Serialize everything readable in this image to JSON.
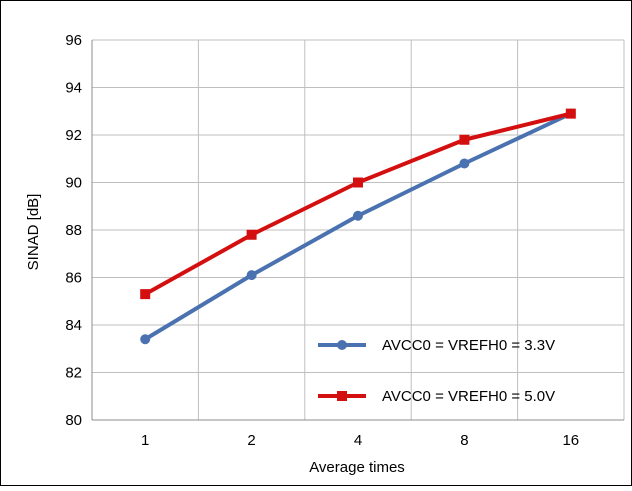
{
  "chart_data": {
    "type": "line",
    "title": "",
    "xlabel": "Average times",
    "ylabel": "SINAD [dB]",
    "categories": [
      "1",
      "2",
      "4",
      "8",
      "16"
    ],
    "ylim": [
      80,
      96
    ],
    "ytick_step": 2,
    "grid": true,
    "legend_position": "bottom-right",
    "series": [
      {
        "name": "AVCC0 = VREFH0 = 3.3V",
        "values": [
          83.4,
          86.1,
          88.6,
          90.8,
          92.9
        ],
        "color": "#4a72b0",
        "marker": "circle"
      },
      {
        "name": "AVCC0 = VREFH0 = 5.0V",
        "values": [
          85.3,
          87.8,
          90.0,
          91.8,
          92.9
        ],
        "color": "#d40f0f",
        "marker": "square"
      }
    ]
  }
}
